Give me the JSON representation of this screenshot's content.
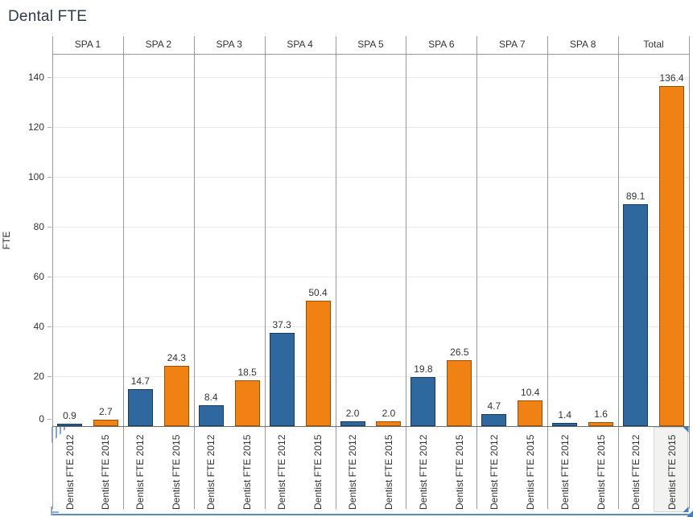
{
  "title": "Dental FTE",
  "chart_data": {
    "type": "bar",
    "title": "Dental FTE",
    "ylabel": "FTE",
    "ylim": [
      0,
      145
    ],
    "yticks": [
      0,
      20,
      40,
      60,
      80,
      100,
      120,
      140
    ],
    "grid": true,
    "legend_position": "none",
    "categories": [
      "SPA 1",
      "SPA 2",
      "SPA 3",
      "SPA 4",
      "SPA 5",
      "SPA 6",
      "SPA 7",
      "SPA 8",
      "Total"
    ],
    "series": [
      {
        "name": "Dentist FTE 2012",
        "color": "#2f689e",
        "values": [
          0.9,
          14.7,
          8.4,
          37.3,
          2.0,
          19.8,
          4.7,
          1.4,
          89.1
        ]
      },
      {
        "name": "Dentist FTE 2015",
        "color": "#f08214",
        "values": [
          2.7,
          24.3,
          18.5,
          50.4,
          2.0,
          26.5,
          10.4,
          1.6,
          136.4
        ]
      }
    ],
    "bar_value_labels": [
      [
        "0.9",
        "14.7",
        "8.4",
        "37.3",
        "2.0",
        "19.8",
        "4.7",
        "1.4",
        "89.1"
      ],
      [
        "2.7",
        "24.3",
        "18.5",
        "50.4",
        "2.0",
        "26.5",
        "10.4",
        "1.6",
        "136.4"
      ]
    ]
  },
  "selection": {
    "highlighted_pane": "Total",
    "highlighted_label": "Dentist FTE 2015"
  },
  "colors": {
    "bar_2012": "#2f689e",
    "bar_2012_border": "#1a3a5c",
    "bar_2015": "#f08214",
    "bar_2015_border": "#9a4f06",
    "gridline": "#e9e9e9",
    "pane_border": "#999999",
    "text": "#333333",
    "title_text": "#2e3b4a",
    "selection_blue": "#4a7ebb",
    "highlight_bg": "#f2f2f1"
  }
}
